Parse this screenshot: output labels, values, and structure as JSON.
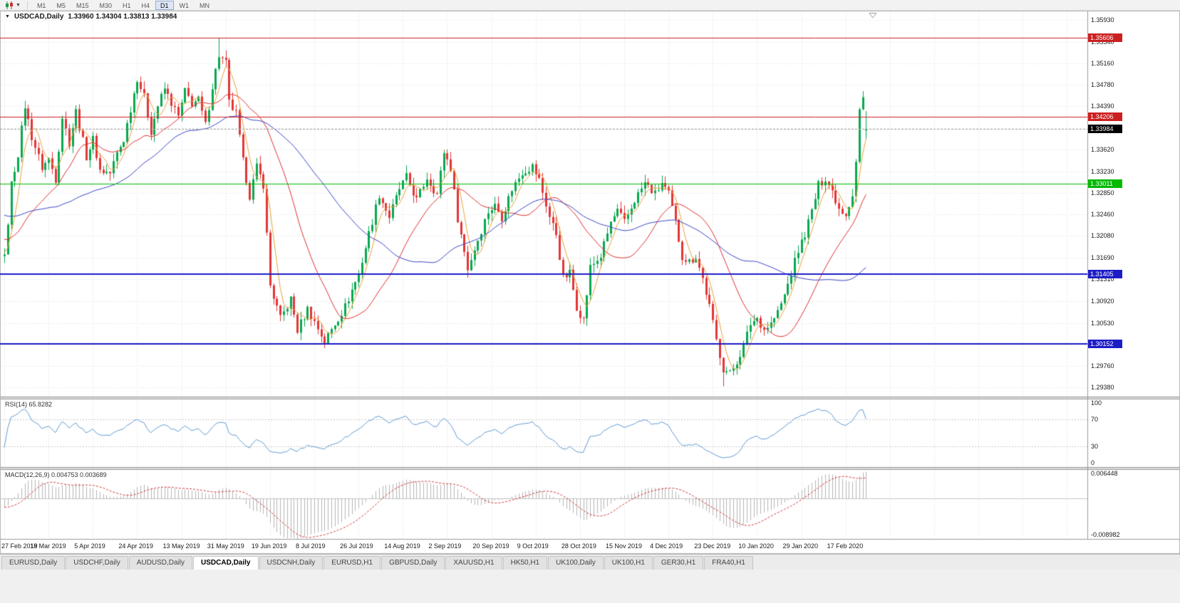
{
  "toolbar": {
    "chart_type_tooltip": "Candlestick chart",
    "timeframes": [
      "M1",
      "M5",
      "M15",
      "M30",
      "H1",
      "H4",
      "D1",
      "W1",
      "MN"
    ],
    "active_timeframe": "D1"
  },
  "chart": {
    "title": "USDCAD,Daily",
    "ohlc": "1.33960 1.34304 1.33813 1.33984"
  },
  "chart_data": {
    "type": "candlestick",
    "symbol": "USDCAD",
    "period": "Daily",
    "last_bar": {
      "open": 1.3396,
      "high": 1.34304,
      "low": 1.33813,
      "close": 1.33984
    },
    "ylim": [
      1.2922,
      1.3608
    ],
    "y_ticks": [
      "1.35930",
      "1.35540",
      "1.35160",
      "1.34780",
      "1.34390",
      "1.33620",
      "1.33230",
      "1.32850",
      "1.32460",
      "1.32080",
      "1.31690",
      "1.31310",
      "1.30920",
      "1.30530",
      "1.29760",
      "1.29380"
    ],
    "x_labels": [
      "27 Feb 2019",
      "18 Mar 2019",
      "5 Apr 2019",
      "24 Apr 2019",
      "13 May 2019",
      "31 May 2019",
      "19 Jun 2019",
      "8 Jul 2019",
      "26 Jul 2019",
      "14 Aug 2019",
      "2 Sep 2019",
      "20 Sep 2019",
      "9 Oct 2019",
      "28 Oct 2019",
      "15 Nov 2019",
      "4 Dec 2019",
      "23 Dec 2019",
      "10 Jan 2020",
      "29 Jan 2020",
      "17 Feb 2020"
    ],
    "bars_per_label": 13,
    "total_bars": 254,
    "up_color": "#07a84f",
    "down_color": "#e23535",
    "price_path": [
      [
        0,
        1.3168
      ],
      [
        2,
        1.33
      ],
      [
        4,
        1.3355
      ],
      [
        6,
        1.344
      ],
      [
        8,
        1.3385
      ],
      [
        11,
        1.333
      ],
      [
        13,
        1.3345
      ],
      [
        15,
        1.331
      ],
      [
        17,
        1.342
      ],
      [
        19,
        1.3375
      ],
      [
        21,
        1.343
      ],
      [
        24,
        1.335
      ],
      [
        26,
        1.338
      ],
      [
        28,
        1.3325
      ],
      [
        31,
        1.332
      ],
      [
        33,
        1.3355
      ],
      [
        35,
        1.338
      ],
      [
        37,
        1.3435
      ],
      [
        39,
        1.349
      ],
      [
        41,
        1.3455
      ],
      [
        43,
        1.3395
      ],
      [
        45,
        1.344
      ],
      [
        47,
        1.347
      ],
      [
        49,
        1.3445
      ],
      [
        51,
        1.342
      ],
      [
        53,
        1.3465
      ],
      [
        55,
        1.3445
      ],
      [
        57,
        1.345
      ],
      [
        59,
        1.3405
      ],
      [
        61,
        1.3475
      ],
      [
        63,
        1.353
      ],
      [
        65,
        1.3515
      ],
      [
        66,
        1.3445
      ],
      [
        68,
        1.3425
      ],
      [
        70,
        1.334
      ],
      [
        72,
        1.328
      ],
      [
        74,
        1.333
      ],
      [
        76,
        1.33
      ],
      [
        78,
        1.312
      ],
      [
        81,
        1.306
      ],
      [
        84,
        1.3095
      ],
      [
        86,
        1.304
      ],
      [
        89,
        1.3078
      ],
      [
        91,
        1.3055
      ],
      [
        94,
        1.302
      ],
      [
        97,
        1.3052
      ],
      [
        100,
        1.3082
      ],
      [
        102,
        1.3112
      ],
      [
        104,
        1.314
      ],
      [
        107,
        1.3212
      ],
      [
        110,
        1.3282
      ],
      [
        113,
        1.3242
      ],
      [
        116,
        1.3292
      ],
      [
        118,
        1.3312
      ],
      [
        121,
        1.3272
      ],
      [
        124,
        1.3312
      ],
      [
        127,
        1.3282
      ],
      [
        129,
        1.3358
      ],
      [
        131,
        1.333
      ],
      [
        133,
        1.324
      ],
      [
        136,
        1.315
      ],
      [
        139,
        1.3202
      ],
      [
        142,
        1.3252
      ],
      [
        144,
        1.3262
      ],
      [
        146,
        1.3242
      ],
      [
        149,
        1.3292
      ],
      [
        152,
        1.3322
      ],
      [
        155,
        1.3332
      ],
      [
        157,
        1.3308
      ],
      [
        160,
        1.3242
      ],
      [
        162,
        1.3212
      ],
      [
        164,
        1.3132
      ],
      [
        166,
        1.3142
      ],
      [
        168,
        1.3082
      ],
      [
        170,
        1.3058
      ],
      [
        172,
        1.3152
      ],
      [
        175,
        1.3172
      ],
      [
        178,
        1.3232
      ],
      [
        180,
        1.3252
      ],
      [
        182,
        1.3232
      ],
      [
        185,
        1.3272
      ],
      [
        188,
        1.3302
      ],
      [
        191,
        1.3282
      ],
      [
        193,
        1.3302
      ],
      [
        195,
        1.3282
      ],
      [
        197,
        1.3232
      ],
      [
        199,
        1.3172
      ],
      [
        201,
        1.3162
      ],
      [
        203,
        1.3172
      ],
      [
        205,
        1.3132
      ],
      [
        207,
        1.3082
      ],
      [
        209,
        1.3022
      ],
      [
        211,
        1.2972
      ],
      [
        213,
        1.2962
      ],
      [
        215,
        1.2985
      ],
      [
        217,
        1.3012
      ],
      [
        219,
        1.3052
      ],
      [
        221,
        1.3062
      ],
      [
        223,
        1.3042
      ],
      [
        225,
        1.3052
      ],
      [
        227,
        1.3072
      ],
      [
        229,
        1.3102
      ],
      [
        231,
        1.3142
      ],
      [
        233,
        1.3182
      ],
      [
        235,
        1.3212
      ],
      [
        237,
        1.3252
      ],
      [
        239,
        1.3298
      ],
      [
        241,
        1.3312
      ],
      [
        243,
        1.3288
      ],
      [
        245,
        1.3258
      ],
      [
        247,
        1.3248
      ],
      [
        249,
        1.3282
      ],
      [
        250,
        1.334
      ],
      [
        251,
        1.3432
      ],
      [
        252,
        1.3452
      ],
      [
        253,
        1.33984
      ]
    ],
    "spikes": [
      {
        "bar": 63,
        "high": 1.35606
      },
      {
        "bar": 94,
        "low": 1.3016
      },
      {
        "bar": 211,
        "low": 1.294
      },
      {
        "bar": 252,
        "high": 1.3466
      }
    ],
    "hlines": [
      {
        "price": 1.35606,
        "label": "1.35606",
        "color": "#cc2020",
        "width": 1
      },
      {
        "price": 1.34206,
        "label": "1.34206",
        "color": "#cc2020",
        "width": 1
      },
      {
        "price": 1.33011,
        "label": "1.33011",
        "color": "#00b900",
        "width": 1
      },
      {
        "price": 1.31405,
        "label": "1.31405",
        "color": "#1d1dc8",
        "width": 2
      },
      {
        "price": 1.30152,
        "label": "1.30152",
        "color": "#1d1dc8",
        "width": 2
      }
    ],
    "current_price": {
      "value": 1.33984,
      "label": "1.33984",
      "tag_color": "#000000",
      "line_color": "#999999"
    },
    "moving_averages": [
      {
        "period": 5,
        "color": "#eda23d"
      },
      {
        "period": 22,
        "color": "#e03030"
      },
      {
        "period": 50,
        "color": "#3946c8"
      }
    ]
  },
  "rsi": {
    "label": "RSI(14) 65.8282",
    "period": 14,
    "value": 65.8282,
    "levels": [
      "100",
      "70",
      "30",
      "0"
    ],
    "line_color": "#5f9bd5"
  },
  "macd": {
    "label": "MACD(12,26,9) 0.004753 0.003689",
    "fast": 12,
    "slow": 26,
    "signal": 9,
    "value": 0.004753,
    "signal_value": 0.003689,
    "axis_max": "0.006448",
    "axis_min": "-0.008982",
    "hist_color": "#b5b5b5",
    "signal_color": "#d23c3c"
  },
  "tabs": {
    "items": [
      {
        "label": "EURUSD,Daily",
        "active": false
      },
      {
        "label": "USDCHF,Daily",
        "active": false
      },
      {
        "label": "AUDUSD,Daily",
        "active": false
      },
      {
        "label": "USDCAD,Daily",
        "active": true
      },
      {
        "label": "USDCNH,Daily",
        "active": false
      },
      {
        "label": "EURUSD,H1",
        "active": false
      },
      {
        "label": "GBPUSD,Daily",
        "active": false
      },
      {
        "label": "XAUUSD,H1",
        "active": false
      },
      {
        "label": "HK50,H1",
        "active": false
      },
      {
        "label": "UK100,Daily",
        "active": false
      },
      {
        "label": "UK100,H1",
        "active": false
      },
      {
        "label": "GER30,H1",
        "active": false
      },
      {
        "label": "FRA40,H1",
        "active": false
      }
    ]
  }
}
